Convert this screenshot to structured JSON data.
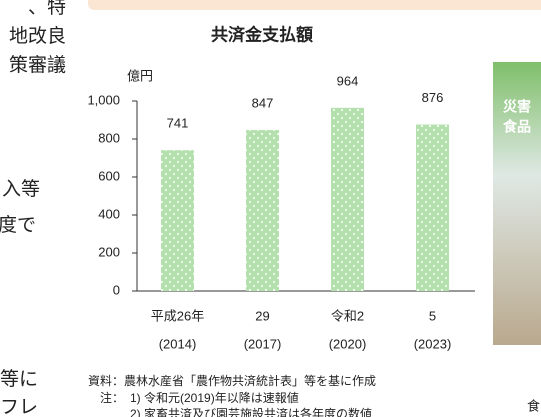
{
  "left_column_fragments": [
    "、特",
    "地改良",
    "策審議",
    "入等",
    "度で",
    "等に",
    "フレ"
  ],
  "photo_texts": [
    "災害",
    "食品"
  ],
  "photo_caption": "食",
  "chart_data": {
    "type": "bar",
    "title": "共済金支払額",
    "y_axis_label": "億円",
    "categories": [
      "平成26年",
      "29",
      "令和2",
      "5"
    ],
    "category_years": [
      "(2014)",
      "(2017)",
      "(2020)",
      "(2023)"
    ],
    "values": [
      741,
      847,
      964,
      876
    ],
    "color": "#b4e0ae",
    "ylim": [
      0,
      1000
    ],
    "yticks": [
      0,
      200,
      400,
      600,
      800,
      {
        "value": 1000,
        "label": "1,000"
      }
    ],
    "grid": false
  },
  "notes": {
    "source": "資料：農林水産省「農作物共済統計表」等を基に作成",
    "note_label": "注：",
    "note_items": [
      "1) 令和元(2019)年以降は速報値",
      "2) 家畜共済及び園芸施設共済は各年度の数値"
    ]
  }
}
